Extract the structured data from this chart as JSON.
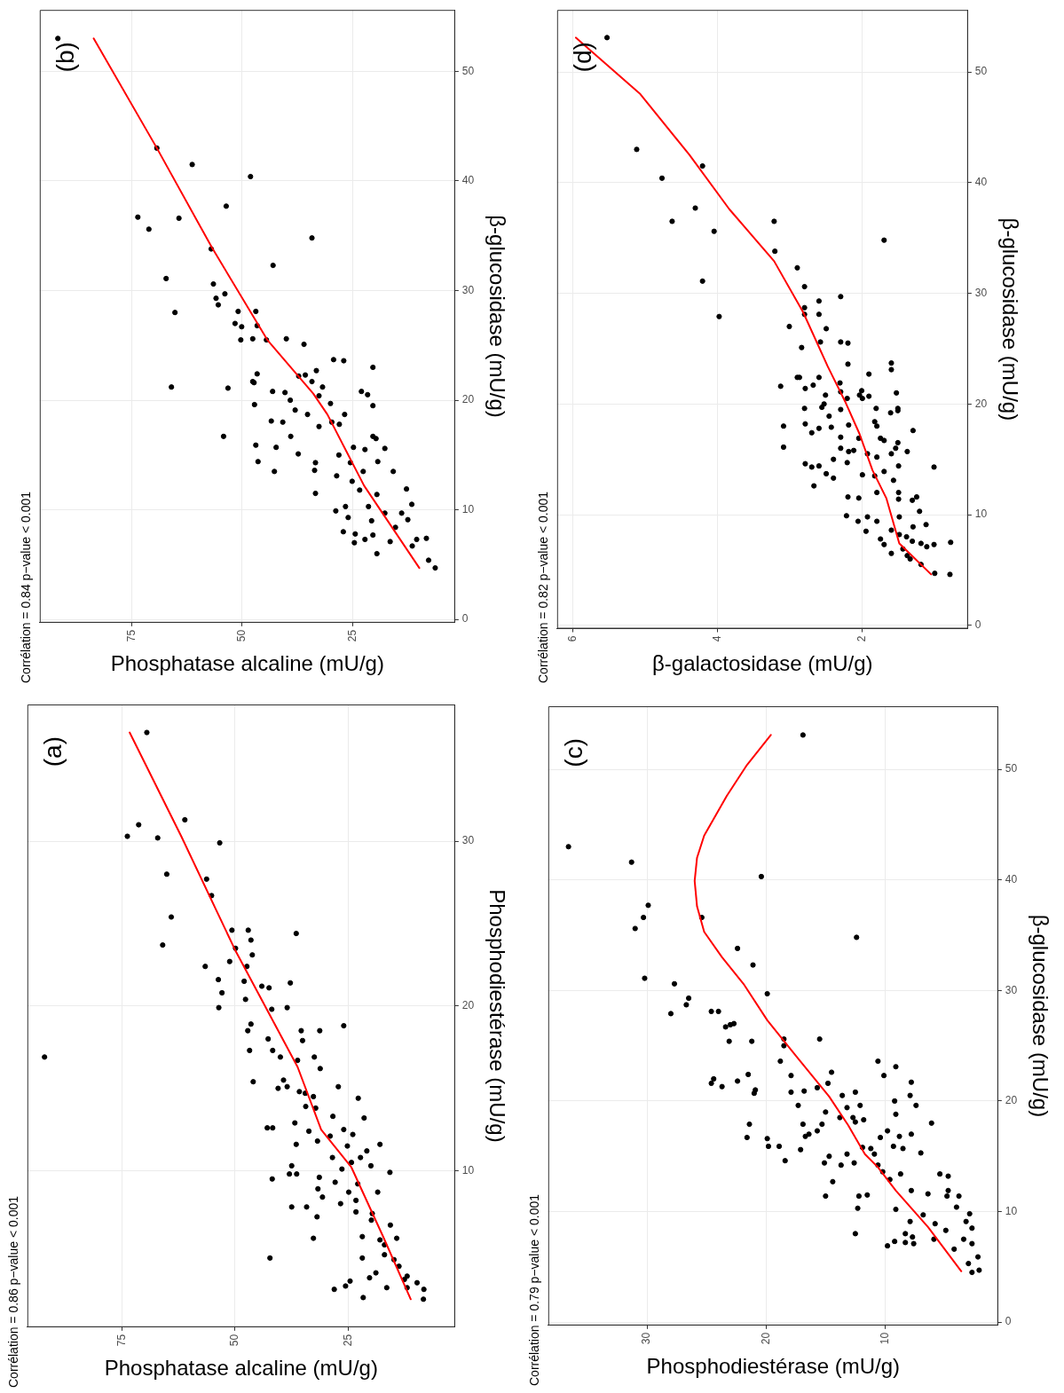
{
  "chart_data": [
    {
      "type": "scatter",
      "title": "Corrélation = 0.86 p−value < 0.001",
      "xlabel": "Phosphatase alcaline (mU/g)",
      "ylabel": "Phosphodiestérase (mU/g)",
      "annotations": [
        "(a)"
      ],
      "xlim": [
        95.9,
        1.4
      ],
      "xticks": [
        75,
        50,
        25
      ],
      "ylim": [
        0.5,
        38.3
      ],
      "yticks": [
        10,
        20,
        30
      ],
      "grid": true,
      "series": [
        {
          "type": "scatter",
          "color": "#000000",
          "marker": "circle",
          "values": [
            16.9,
            36.6,
            30.3,
            31.0,
            30.2,
            31.3,
            29.9,
            28.0,
            27.7,
            26.7,
            25.4,
            23.7,
            24.6,
            24.6,
            24.4,
            24.0,
            23.5,
            23.1,
            22.7,
            22.4,
            22.4,
            21.6,
            21.5,
            21.2,
            21.4,
            21.1,
            20.8,
            20.4,
            19.9,
            19.8,
            19.9,
            18.9,
            18.5,
            18.5,
            18.5,
            18.8,
            18.0,
            17.9,
            17.3,
            17.3,
            16.9,
            16.7,
            16.9,
            16.2,
            15.4,
            15.5,
            15.1,
            15.0,
            14.8,
            14.7,
            14.5,
            15.1,
            14.4,
            13.9,
            13.8,
            13.3,
            13.2,
            12.9,
            12.6,
            12.6,
            12.4,
            12.5,
            12.2,
            12.1,
            11.8,
            11.6,
            11.6,
            11.5,
            11.2,
            10.8,
            10.8,
            10.5,
            10.1,
            10.3,
            10.3,
            9.9,
            9.8,
            9.5,
            9.8,
            9.6,
            9.3,
            9.2,
            8.7,
            8.7,
            8.9,
            8.4,
            8.2,
            8.0,
            7.8,
            7.8,
            7.5,
            7.4,
            7.2,
            7.0,
            6.7,
            5.9,
            6.0,
            5.8,
            5.9,
            5.5,
            4.7,
            4.7,
            4.9,
            4.6,
            4.2,
            3.8,
            3.6,
            3.3,
            3.4,
            3.5,
            3.0,
            2.8,
            2.9,
            2.9,
            3.2,
            2.8,
            2.3,
            2.2
          ],
          "x": [
            92.1,
            69.5,
            73.8,
            71.3,
            67.1,
            61.1,
            53.4,
            65.1,
            56.3,
            55.2,
            64.1,
            66.0,
            50.7,
            47.1,
            36.5,
            46.5,
            49.9,
            46.2,
            51.2,
            56.6,
            47.4,
            53.7,
            48.0,
            44.1,
            37.8,
            42.5,
            52.9,
            47.7,
            53.6,
            41.9,
            38.5,
            46.5,
            47.2,
            35.4,
            31.3,
            26.0,
            42.7,
            35.1,
            46.8,
            41.7,
            40.0,
            36.2,
            32.5,
            31.2,
            46.0,
            39.3,
            38.5,
            40.5,
            35.8,
            34.5,
            32.7,
            27.2,
            22.8,
            34.4,
            32.2,
            28.4,
            21.5,
            36.8,
            42.9,
            41.7,
            33.7,
            26.0,
            24.0,
            29.0,
            31.8,
            36.5,
            18.0,
            25.2,
            20.9,
            28.5,
            22.3,
            24.3,
            26.4,
            20.0,
            37.5,
            15.8,
            38.0,
            41.8,
            36.4,
            31.4,
            27.9,
            22.9,
            24.9,
            18.5,
            31.7,
            30.7,
            23.3,
            26.7,
            37.5,
            34.2,
            23.3,
            19.7,
            31.9,
            19.9,
            15.7,
            32.7,
            21.9,
            18.0,
            14.3,
            17.0,
            42.3,
            21.9,
            17.0,
            14.9,
            13.8,
            18.9,
            12.0,
            24.6,
            12.6,
            20.3,
            25.6,
            28.1,
            16.5,
            12.0,
            9.8,
            8.3,
            21.7,
            8.4
          ]
        },
        {
          "type": "line",
          "color": "#ff0000",
          "marker": "none",
          "values": [
            2.2,
            6,
            10.2,
            12.5,
            16.3,
            23.4,
            30.3,
            36.6
          ],
          "x": [
            11.2,
            17.3,
            24.3,
            31,
            36.2,
            50,
            61.9,
            73.3
          ]
        }
      ]
    },
    {
      "type": "scatter",
      "title": "Corrélation = 0.84 p−value < 0.001",
      "xlabel": "Phosphatase alcaline (mU/g)",
      "ylabel": "β-glucosidase (mU/g)",
      "annotations": [
        "(b)"
      ],
      "xlim": [
        95.8,
        1.8
      ],
      "xticks": [
        75,
        50,
        25
      ],
      "ylim": [
        -0.3,
        55.6
      ],
      "yticks": [
        0,
        10,
        20,
        30,
        40,
        50
      ],
      "grid": true,
      "series": [
        {
          "type": "scatter",
          "color": "#000000",
          "marker": "circle",
          "values": [
            53.0,
            43.0,
            41.5,
            40.4,
            37.7,
            36.7,
            36.6,
            35.6,
            34.8,
            33.8,
            32.3,
            31.1,
            30.6,
            29.3,
            29.7,
            28.7,
            28.0,
            28.1,
            28.1,
            27.0,
            26.7,
            26.8,
            25.5,
            25.6,
            25.5,
            25.6,
            25.1,
            23.7,
            23.6,
            23.0,
            22.7,
            22.4,
            22.2,
            22.3,
            21.2,
            21.1,
            21.7,
            21.6,
            21.7,
            21.2,
            20.8,
            20.7,
            20.8,
            20.5,
            20.4,
            20.0,
            19.7,
            19.6,
            19.5,
            19.1,
            18.7,
            18.7,
            18.1,
            18.0,
            18.0,
            17.8,
            17.6,
            16.7,
            16.7,
            16.7,
            16.5,
            15.9,
            15.7,
            15.7,
            15.5,
            15.6,
            15.1,
            15.0,
            14.4,
            14.3,
            14.3,
            14.4,
            13.5,
            13.6,
            13.5,
            13.5,
            13.1,
            12.6,
            11.8,
            11.5,
            11.4,
            11.9,
            10.5,
            10.3,
            10.3,
            9.9,
            9.7,
            9.7,
            9.3,
            9.0,
            9.1,
            8.4,
            8.0,
            7.8,
            7.7,
            7.1,
            7.0,
            7.3,
            7.3,
            7.4,
            6.7,
            6.0,
            5.4,
            4.7
          ],
          "x": [
            91.7,
            69.3,
            61.3,
            48.1,
            53.6,
            73.6,
            64.3,
            71.1,
            34.2,
            57.0,
            43.0,
            67.2,
            56.5,
            55.9,
            53.9,
            55.4,
            65.2,
            50.9,
            46.9,
            51.6,
            50.1,
            46.6,
            50.3,
            47.6,
            44.5,
            40.0,
            36.0,
            29.3,
            27.0,
            20.4,
            33.2,
            46.6,
            37.2,
            35.7,
            66.0,
            53.2,
            47.6,
            47.3,
            34.2,
            31.8,
            43.1,
            40.3,
            23.0,
            21.6,
            32.6,
            39.1,
            30.0,
            47.2,
            20.4,
            38.0,
            35.2,
            26.8,
            43.4,
            40.8,
            29.7,
            28.0,
            32.6,
            39.0,
            54.2,
            20.4,
            19.7,
            46.9,
            42.3,
            24.8,
            22.2,
            17.7,
            37.3,
            28.1,
            46.4,
            33.4,
            25.5,
            19.3,
            42.7,
            33.6,
            22.6,
            15.8,
            28.6,
            25.1,
            23.4,
            33.4,
            19.5,
            12.8,
            11.6,
            26.6,
            21.4,
            28.8,
            17.7,
            13.9,
            26.0,
            20.7,
            12.5,
            15.3,
            27.1,
            24.4,
            20.4,
            16.5,
            24.6,
            22.2,
            10.5,
            8.3,
            11.5,
            19.5,
            7.8,
            6.3
          ]
        },
        {
          "type": "line",
          "color": "#ff0000",
          "marker": "none",
          "values": [
            4.7,
            12.2,
            18.7,
            20.6,
            25.5,
            33.9,
            43.0,
            53.0
          ],
          "x": [
            9.9,
            22.4,
            30.7,
            33.9,
            44.3,
            56.8,
            69.3,
            83.6
          ]
        }
      ]
    },
    {
      "type": "scatter",
      "title": "Corrélation = 0.79 p−value < 0.001",
      "xlabel": "Phosphodiestérase (mU/g)",
      "ylabel": "β-glucosidase (mU/g)",
      "annotations": [
        "(c)"
      ],
      "xlim": [
        38.3,
        0.5
      ],
      "xticks": [
        30,
        20,
        10
      ],
      "ylim": [
        -0.3,
        55.7
      ],
      "yticks": [
        0,
        10,
        20,
        30,
        40,
        50
      ],
      "grid": true,
      "series": [
        {
          "type": "scatter",
          "color": "#000000",
          "marker": "circle",
          "values": [
            43.0,
            41.6,
            40.3,
            37.7,
            36.6,
            36.6,
            35.6,
            34.8,
            33.8,
            32.3,
            31.1,
            30.6,
            29.7,
            29.3,
            28.7,
            27.9,
            28.1,
            28.1,
            26.7,
            26.9,
            27.0,
            25.4,
            25.4,
            25.6,
            25.0,
            25.6,
            23.6,
            23.6,
            23.1,
            22.6,
            22.4,
            22.3,
            22.3,
            22.0,
            21.6,
            21.8,
            21.3,
            21.6,
            21.7,
            21.2,
            21.0,
            20.7,
            20.8,
            20.9,
            20.8,
            20.5,
            20.5,
            20.0,
            19.6,
            19.6,
            19.4,
            19.6,
            19.0,
            18.8,
            18.5,
            18.5,
            18.3,
            18.1,
            17.9,
            17.9,
            18.0,
            17.9,
            17.3,
            17.3,
            17.0,
            16.8,
            16.8,
            16.7,
            17.0,
            16.7,
            16.6,
            15.9,
            15.9,
            15.9,
            15.6,
            15.8,
            15.7,
            15.3,
            15.7,
            15.2,
            15.0,
            15.2,
            14.6,
            14.4,
            14.4,
            14.2,
            14.2,
            13.4,
            13.4,
            13.2,
            13.6,
            12.9,
            12.7,
            11.9,
            11.6,
            11.4,
            11.4,
            11.9,
            11.4,
            11.5,
            11.4,
            10.3,
            10.2,
            10.4,
            9.8,
            9.7,
            9.1,
            8.9,
            9.1,
            8.5,
            8.3,
            8.0,
            8.0,
            7.7,
            7.5,
            7.5,
            7.1,
            7.2,
            7.3,
            7.1,
            6.9,
            6.6,
            5.3,
            5.9,
            4.5,
            4.7,
            53.1
          ],
          "x": [
            36.6,
            31.3,
            20.4,
            29.9,
            30.3,
            25.4,
            31.0,
            12.4,
            22.4,
            21.1,
            30.2,
            27.7,
            19.9,
            26.5,
            26.7,
            28.0,
            24.6,
            24.0,
            23.4,
            23.0,
            22.7,
            23.1,
            21.2,
            18.5,
            18.5,
            15.5,
            18.8,
            10.6,
            9.1,
            14.5,
            21.5,
            17.9,
            10.1,
            24.4,
            24.6,
            22.4,
            23.7,
            14.8,
            7.8,
            15.7,
            20.9,
            21.0,
            17.9,
            16.8,
            12.5,
            7.9,
            13.6,
            9.2,
            7.4,
            17.3,
            13.2,
            12.1,
            15.0,
            9.1,
            13.8,
            12.7,
            11.8,
            12.5,
            21.4,
            16.9,
            6.1,
            15.3,
            15.7,
            9.8,
            16.4,
            16.7,
            8.8,
            10.4,
            7.8,
            21.6,
            19.9,
            19.8,
            9.3,
            18.9,
            17.1,
            11.9,
            11.2,
            7.0,
            8.5,
            13.2,
            14.7,
            10.9,
            18.4,
            15.1,
            12.6,
            13.7,
            10.6,
            8.7,
            5.4,
            4.7,
            10.2,
            9.6,
            14.4,
            4.7,
            6.4,
            4.8,
            3.8,
            7.8,
            12.2,
            11.5,
            15.0,
            12.3,
            9.1,
            4.0,
            2.9,
            6.8,
            7.9,
            5.8,
            3.2,
            2.7,
            4.9,
            8.3,
            12.5,
            7.7,
            5.9,
            3.4,
            2.7,
            8.3,
            9.2,
            7.6,
            9.8,
            4.2,
            3.0,
            2.2,
            2.7,
            2.1,
            16.9
          ]
        },
        {
          "type": "line",
          "color": "#ff0000",
          "marker": "none",
          "values": [
            4.6,
            8.6,
            11.9,
            14.0,
            15.2,
            17.8,
            20.4,
            24.1,
            27.3,
            30.6,
            33.0,
            35.3,
            37.6,
            39.9,
            42.0,
            44.0,
            47.6,
            50.4,
            53.1
          ],
          "x": [
            3.6,
            6.4,
            9.1,
            10.6,
            11.7,
            13.1,
            14.7,
            17.5,
            19.9,
            21.9,
            23.7,
            25.2,
            25.8,
            26.0,
            25.8,
            25.2,
            23.3,
            21.6,
            19.6
          ]
        }
      ]
    },
    {
      "type": "scatter",
      "title": "Corrélation = 0.82 p−value < 0.001",
      "xlabel": "β-galactosidase (mU/g)",
      "ylabel": "β-glucosidase (mU/g)",
      "annotations": [
        "(d)"
      ],
      "xlim": [
        6.22,
        0.54
      ],
      "xticks": [
        6,
        4,
        2
      ],
      "ylim": [
        -0.3,
        55.6
      ],
      "yticks": [
        0,
        10,
        20,
        30,
        40,
        50
      ],
      "grid": true,
      "series": [
        {
          "type": "scatter",
          "color": "#000000",
          "marker": "circle",
          "values": [
            53.1,
            43.0,
            40.4,
            41.5,
            37.7,
            36.5,
            36.5,
            35.6,
            34.8,
            33.8,
            32.3,
            31.1,
            30.6,
            29.7,
            29.3,
            27.9,
            28.7,
            28.1,
            28.1,
            27.0,
            26.8,
            25.6,
            25.6,
            25.5,
            25.1,
            23.6,
            23.7,
            23.1,
            22.7,
            22.4,
            22.4,
            22.4,
            21.6,
            21.7,
            21.9,
            21.4,
            21.1,
            21.2,
            21.0,
            20.8,
            20.8,
            20.7,
            20.5,
            20.5,
            20.0,
            19.7,
            19.6,
            19.5,
            19.6,
            19.6,
            19.4,
            19.2,
            18.9,
            18.2,
            18.0,
            17.9,
            18.1,
            18.0,
            18.4,
            17.8,
            17.4,
            17.6,
            17.0,
            16.9,
            16.9,
            16.7,
            16.5,
            16.1,
            16.0,
            16.0,
            15.8,
            15.7,
            15.5,
            15.7,
            15.5,
            15.2,
            15.0,
            14.6,
            14.7,
            14.4,
            14.3,
            14.4,
            14.3,
            13.9,
            13.7,
            13.6,
            13.5,
            13.3,
            13.1,
            12.6,
            12.0,
            12.0,
            11.6,
            11.6,
            11.5,
            11.3,
            11.4,
            10.3,
            9.8,
            9.9,
            9.8,
            9.4,
            9.4,
            9.1,
            8.9,
            8.6,
            8.5,
            8.2,
            8.0,
            7.8,
            7.6,
            7.5,
            7.3,
            7.4,
            7.3,
            7.1,
            6.9,
            6.5,
            6.3,
            6.0,
            5.5,
            4.7,
            4.6
          ],
          "x": [
            5.53,
            5.12,
            4.77,
            4.21,
            4.31,
            4.63,
            3.22,
            4.05,
            1.7,
            3.21,
            2.9,
            4.21,
            2.8,
            2.3,
            2.6,
            3.98,
            2.8,
            2.8,
            2.6,
            3.01,
            2.5,
            2.58,
            2.3,
            2.2,
            2.84,
            2.2,
            1.6,
            1.6,
            1.91,
            2.9,
            2.87,
            2.6,
            3.13,
            2.68,
            2.31,
            2.79,
            2.3,
            2.01,
            1.53,
            2.51,
            2.04,
            1.91,
            2.0,
            2.21,
            2.53,
            2.56,
            2.8,
            2.3,
            1.81,
            1.51,
            1.51,
            1.61,
            2.46,
            2.79,
            3.09,
            2.43,
            2.19,
            1.8,
            1.83,
            2.6,
            2.7,
            1.3,
            2.3,
            2.05,
            1.75,
            1.7,
            1.51,
            3.09,
            2.3,
            1.54,
            2.12,
            2.19,
            1.93,
            1.38,
            1.6,
            1.8,
            2.4,
            2.79,
            2.21,
            2.6,
            2.7,
            1.5,
            1.01,
            1.7,
            2.5,
            2.0,
            1.83,
            2.4,
            1.57,
            2.67,
            1.8,
            1.5,
            1.25,
            2.2,
            2.05,
            1.31,
            1.5,
            1.21,
            1.49,
            2.22,
            1.93,
            2.06,
            1.8,
            1.12,
            1.3,
            1.6,
            1.95,
            1.49,
            1.39,
            1.75,
            1.31,
            0.78,
            1.7,
            1.19,
            1.01,
            1.11,
            1.44,
            1.6,
            1.38,
            1.34,
            1.19,
            1.0,
            0.79
          ]
        },
        {
          "type": "line",
          "color": "#ff0000",
          "marker": "none",
          "values": [
            4.6,
            7.4,
            11.5,
            14.0,
            17.3,
            20.1,
            23.4,
            28.3,
            32.9,
            37.6,
            42.5,
            48.0,
            53.1
          ],
          "x": [
            1.05,
            1.49,
            1.67,
            1.86,
            2.04,
            2.23,
            2.48,
            2.82,
            3.22,
            3.84,
            4.39,
            5.07,
            5.96
          ]
        }
      ]
    }
  ]
}
